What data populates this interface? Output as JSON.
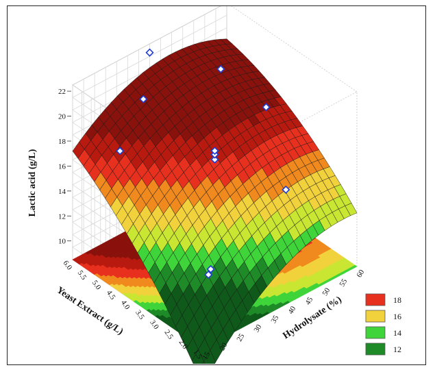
{
  "chart_data": {
    "type": "surface",
    "zlabel": "Lactic acid (g/L)",
    "ylabel": "Yeast Extract (g/L)",
    "xlabel": "Hydrolysate (%)",
    "x_ticks": [
      "15",
      "20",
      "25",
      "30",
      "35",
      "40",
      "45",
      "50",
      "55",
      "60"
    ],
    "y_ticks": [
      "1.5",
      "2.0",
      "2.5",
      "3.0",
      "3.5",
      "4.0",
      "4.5",
      "5.0",
      "5.5",
      "6.0"
    ],
    "z_ticks": [
      "10",
      "12",
      "14",
      "16",
      "18",
      "20",
      "22"
    ],
    "xlim": [
      15,
      60
    ],
    "ylim": [
      1.5,
      6.0
    ],
    "zlim": [
      8.5,
      22.5
    ],
    "grid": true,
    "legend": {
      "position": "bottom-right",
      "entries": [
        {
          "label": "18",
          "color": "#e8301e"
        },
        {
          "label": "16",
          "color": "#f2d23c"
        },
        {
          "label": "14",
          "color": "#3fd43a"
        },
        {
          "label": "12",
          "color": "#1e8a28"
        }
      ]
    },
    "contour_colors": [
      "#0f5a1a",
      "#1e8a28",
      "#3fd43a",
      "#c8e632",
      "#f2d23c",
      "#f08a1e",
      "#e8301e",
      "#b81a10",
      "#8a120c"
    ],
    "contour_breaks": [
      11,
      12,
      13,
      14,
      15,
      16,
      17,
      18
    ],
    "data_points": [
      {
        "x": 37.5,
        "y": 3.75,
        "z": 16.8
      },
      {
        "x": 37.5,
        "y": 3.75,
        "z": 17.2
      },
      {
        "x": 37.5,
        "y": 3.75,
        "z": 17.5
      },
      {
        "x": 26.2,
        "y": 4.88,
        "z": 21.5
      },
      {
        "x": 48.8,
        "y": 4.88,
        "z": 20.6
      },
      {
        "x": 48.8,
        "y": 2.63,
        "z": 14.5
      },
      {
        "x": 26.2,
        "y": 2.63,
        "z": 11.0
      },
      {
        "x": 22.5,
        "y": 5.25,
        "z": 17.3
      },
      {
        "x": 52.5,
        "y": 3.75,
        "z": 18.8
      },
      {
        "x": 30.0,
        "y": 3.0,
        "z": 10.3
      },
      {
        "x": 37.5,
        "y": 6.0,
        "z": 21.8
      }
    ]
  }
}
